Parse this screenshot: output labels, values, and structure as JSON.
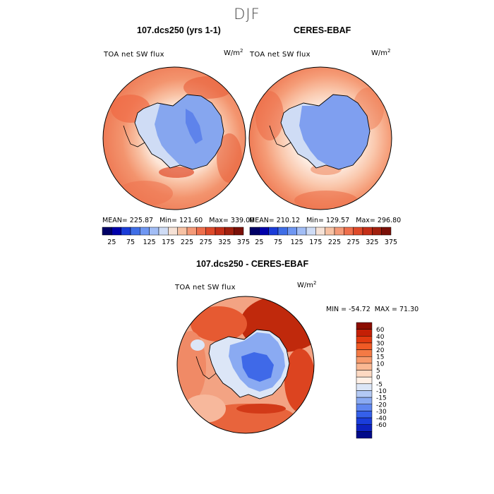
{
  "season": "DJF",
  "panels": [
    {
      "title": "107.dcs250 (yrs 1-1)",
      "variable": "TOA net SW flux",
      "units_base": "W/m",
      "units_exp": "2",
      "mean_label": "MEAN=",
      "mean": "225.87",
      "min_label": "Min=",
      "min": "121.60",
      "max_label": "Max=",
      "max": "339.00"
    },
    {
      "title": "CERES-EBAF",
      "variable": "TOA net SW flux",
      "units_base": "W/m",
      "units_exp": "2",
      "mean_label": "MEAN=",
      "mean": "210.12",
      "min_label": "Min=",
      "min": "129.57",
      "max_label": "Max=",
      "max": "296.80"
    }
  ],
  "diff": {
    "title": "107.dcs250 - CERES-EBAF",
    "variable": "TOA net SW flux",
    "units_base": "W/m",
    "units_exp": "2",
    "min_label": "MIN =",
    "min": "-54.72",
    "max_label": "MAX =",
    "max": "71.30"
  },
  "chart_data": [
    {
      "type": "heatmap",
      "projection": "south-polar-stereographic",
      "title": "107.dcs250 (yrs 1-1)",
      "variable": "TOA net SW flux",
      "units": "W/m^2",
      "stats": {
        "mean": 225.87,
        "min": 121.6,
        "max": 339.0
      },
      "colorbar": {
        "orientation": "horizontal",
        "tick_labels": [
          "25",
          "75",
          "125",
          "175",
          "225",
          "275",
          "325",
          "375"
        ],
        "colors": [
          "#000066",
          "#0000aa",
          "#1a3cd8",
          "#3f6ee6",
          "#6f97f2",
          "#a2bdf5",
          "#cfdcf5",
          "#f6e2d6",
          "#f7c2a4",
          "#f49a78",
          "#ee6f4c",
          "#de4a2a",
          "#c42f18",
          "#a1200e",
          "#7a1008"
        ]
      }
    },
    {
      "type": "heatmap",
      "projection": "south-polar-stereographic",
      "title": "CERES-EBAF",
      "variable": "TOA net SW flux",
      "units": "W/m^2",
      "stats": {
        "mean": 210.12,
        "min": 129.57,
        "max": 296.8
      },
      "colorbar": {
        "orientation": "horizontal",
        "tick_labels": [
          "25",
          "75",
          "125",
          "175",
          "225",
          "275",
          "325",
          "375"
        ],
        "colors": [
          "#000066",
          "#0000aa",
          "#1a3cd8",
          "#3f6ee6",
          "#6f97f2",
          "#a2bdf5",
          "#cfdcf5",
          "#f6e2d6",
          "#f7c2a4",
          "#f49a78",
          "#ee6f4c",
          "#de4a2a",
          "#c42f18",
          "#a1200e",
          "#7a1008"
        ]
      }
    },
    {
      "type": "heatmap",
      "projection": "south-polar-stereographic",
      "title": "107.dcs250 - CERES-EBAF",
      "variable": "TOA net SW flux",
      "units": "W/m^2",
      "stats": {
        "min": -54.72,
        "max": 71.3
      },
      "colorbar": {
        "orientation": "vertical",
        "tick_labels": [
          "60",
          "40",
          "30",
          "20",
          "15",
          "10",
          "5",
          "0",
          "-5",
          "-10",
          "-15",
          "-20",
          "-30",
          "-40",
          "-60"
        ],
        "colors": [
          "#8b0d00",
          "#c41f05",
          "#e23a10",
          "#f05a25",
          "#f47a45",
          "#f79a6c",
          "#fab893",
          "#fdd9c2",
          "#fff0e6",
          "#dce6f7",
          "#b3c9f4",
          "#8aaaf2",
          "#5f86f0",
          "#3560ea",
          "#1a3ddb",
          "#0d22c0",
          "#000a8a"
        ]
      }
    }
  ]
}
